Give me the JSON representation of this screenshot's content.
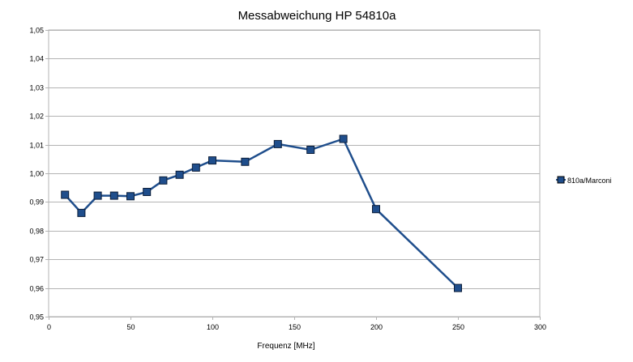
{
  "chart_data": {
    "type": "line",
    "title": "Messabweichung HP 54810a",
    "xlabel": "Frequenz [MHz]",
    "ylabel": "",
    "xlim": [
      0,
      300
    ],
    "ylim": [
      0.95,
      1.05
    ],
    "x_ticks": [
      0,
      50,
      100,
      150,
      200,
      250,
      300
    ],
    "y_ticks": [
      0.95,
      0.96,
      0.97,
      0.98,
      0.99,
      1.0,
      1.01,
      1.02,
      1.03,
      1.04,
      1.05
    ],
    "x_tick_labels": [
      "0",
      "50",
      "100",
      "150",
      "200",
      "250",
      "300"
    ],
    "y_tick_labels": [
      "0,95",
      "0,96",
      "0,97",
      "0,98",
      "0,99",
      "1,00",
      "1,01",
      "1,02",
      "1,03",
      "1,04",
      "1,05"
    ],
    "grid": "horizontal",
    "legend_position": "right",
    "series": [
      {
        "name": "810a/Marconi",
        "color": "#1f4e8c",
        "marker": "square",
        "x": [
          10,
          20,
          30,
          40,
          50,
          60,
          70,
          80,
          90,
          100,
          120,
          140,
          160,
          180,
          200,
          250
        ],
        "y": [
          0.9925,
          0.9862,
          0.9922,
          0.9922,
          0.992,
          0.9935,
          0.9975,
          0.9995,
          1.002,
          1.0045,
          1.004,
          1.0102,
          1.0082,
          1.012,
          0.9875,
          0.96
        ]
      }
    ]
  }
}
